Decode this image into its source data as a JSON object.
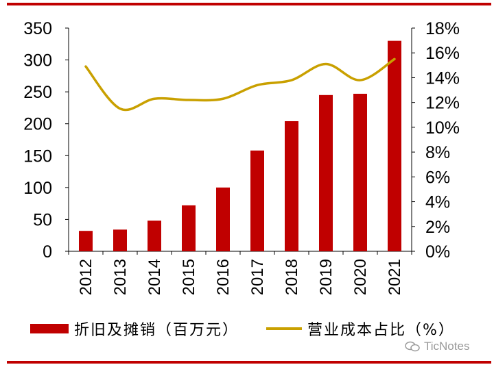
{
  "chart_data": {
    "type": "bar+line",
    "categories": [
      "2012",
      "2013",
      "2014",
      "2015",
      "2016",
      "2017",
      "2018",
      "2019",
      "2020",
      "2021"
    ],
    "series": [
      {
        "name": "折旧及摊销（百万元）",
        "type": "bar",
        "axis": "left",
        "color": "#c00000",
        "values": [
          32,
          34,
          48,
          72,
          100,
          158,
          204,
          245,
          247,
          330
        ]
      },
      {
        "name": "营业成本占比（%）",
        "type": "line",
        "axis": "right",
        "color": "#c9a000",
        "values": [
          14.9,
          11.5,
          12.3,
          12.2,
          12.3,
          13.4,
          13.8,
          15.1,
          13.8,
          15.5
        ]
      }
    ],
    "y_left": {
      "min": 0,
      "max": 350,
      "ticks": [
        "0",
        "50",
        "100",
        "150",
        "200",
        "250",
        "300",
        "350"
      ]
    },
    "y_right": {
      "min": 0,
      "max": 18,
      "ticks": [
        "0%",
        "2%",
        "4%",
        "6%",
        "8%",
        "10%",
        "12%",
        "14%",
        "16%",
        "18%"
      ]
    },
    "legend": "bottom",
    "grid": false
  },
  "legend": {
    "bar_label": "折旧及摊销（百万元）",
    "line_label": "营业成本占比（%）"
  },
  "watermark": {
    "text": "TicNotes"
  }
}
